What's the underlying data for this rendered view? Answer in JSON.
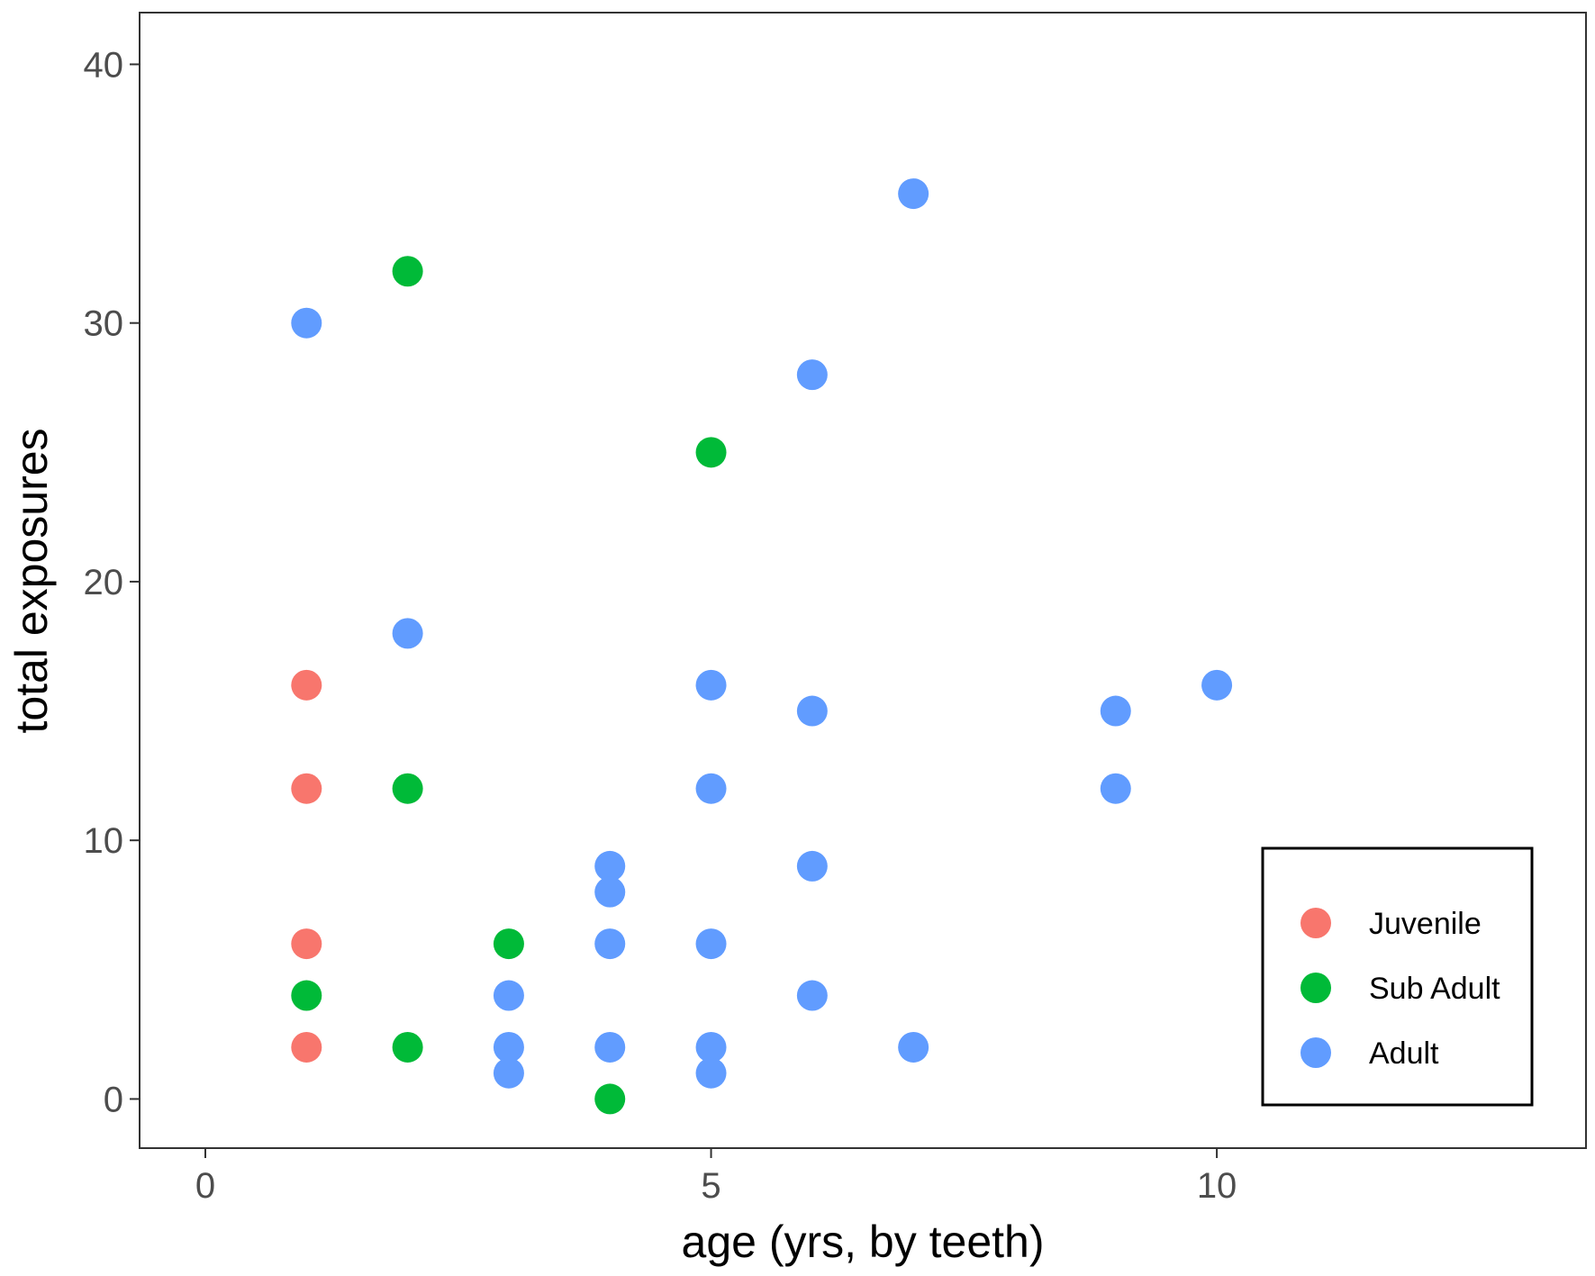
{
  "chart_data": {
    "type": "scatter",
    "title": "",
    "xlabel": "age (yrs, by teeth)",
    "ylabel": "total exposures",
    "xlim": [
      -0.65,
      13.65
    ],
    "ylim": [
      -1.9,
      42.0
    ],
    "x_ticks": [
      0,
      5,
      10
    ],
    "y_ticks": [
      0,
      10,
      20,
      30,
      40
    ],
    "grid": false,
    "legend_position": "bottom-right",
    "series": [
      {
        "name": "Juvenile",
        "color": "#F8766D",
        "points": [
          [
            1,
            16
          ],
          [
            1,
            12
          ],
          [
            1,
            6
          ],
          [
            1,
            2
          ]
        ]
      },
      {
        "name": "Sub Adult",
        "color": "#00BA38",
        "points": [
          [
            1,
            4
          ],
          [
            2,
            32
          ],
          [
            2,
            12
          ],
          [
            2,
            2
          ],
          [
            3,
            6
          ],
          [
            4,
            0
          ],
          [
            5,
            25
          ]
        ]
      },
      {
        "name": "Adult",
        "color": "#619CFF",
        "points": [
          [
            1,
            30
          ],
          [
            2,
            18
          ],
          [
            3,
            4
          ],
          [
            3,
            2
          ],
          [
            3,
            1
          ],
          [
            4,
            9
          ],
          [
            4,
            8
          ],
          [
            4,
            6
          ],
          [
            4,
            2
          ],
          [
            5,
            16
          ],
          [
            5,
            12
          ],
          [
            5,
            6
          ],
          [
            5,
            2
          ],
          [
            5,
            1
          ],
          [
            6,
            28
          ],
          [
            6,
            15
          ],
          [
            6,
            9
          ],
          [
            6,
            4
          ],
          [
            7,
            35
          ],
          [
            7,
            2
          ],
          [
            9,
            15
          ],
          [
            9,
            12
          ],
          [
            10,
            16
          ]
        ]
      }
    ]
  }
}
